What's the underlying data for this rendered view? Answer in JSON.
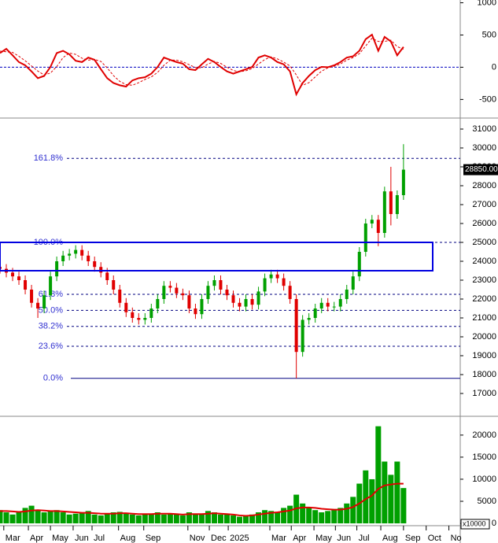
{
  "chart_data": [
    {
      "type": "line",
      "xlim": [
        0,
        73
      ],
      "ylim": [
        -764,
        1043
      ],
      "yticks": [
        -500,
        0,
        500,
        1000
      ],
      "zero_line": true,
      "series": [
        {
          "color": "#e00000",
          "values": [
            220,
            285,
            185,
            80,
            30,
            -65,
            -170,
            -135,
            5,
            220,
            255,
            200,
            100,
            80,
            150,
            115,
            -30,
            -170,
            -245,
            -280,
            -300,
            -205,
            -170,
            -155,
            -100,
            5,
            150,
            115,
            80,
            55,
            -30,
            -45,
            45,
            130,
            80,
            5,
            -65,
            -100,
            -65,
            -30,
            5,
            150,
            185,
            150,
            80,
            45,
            -65,
            -420,
            -245,
            -135,
            -45,
            5,
            0,
            30,
            80,
            150,
            170,
            255,
            435,
            505,
            255,
            470,
            400,
            185,
            315
          ]
        },
        {
          "color": "#e00000",
          "dashed": true,
          "values": [
            250,
            240,
            230,
            170,
            100,
            20,
            -60,
            -120,
            -90,
            10,
            150,
            220,
            200,
            140,
            110,
            120,
            90,
            -10,
            -130,
            -220,
            -270,
            -280,
            -240,
            -190,
            -150,
            -80,
            30,
            110,
            110,
            85,
            40,
            -5,
            -10,
            50,
            90,
            60,
            0,
            -50,
            -70,
            -55,
            -20,
            50,
            120,
            160,
            130,
            80,
            20,
            -120,
            -280,
            -240,
            -150,
            -60,
            -10,
            15,
            50,
            110,
            150,
            210,
            330,
            450,
            400,
            400,
            420,
            320,
            280
          ]
        }
      ]
    },
    {
      "type": "candlestick",
      "xlim": [
        0,
        73
      ],
      "ylim": [
        15875,
        31500
      ],
      "yticks": [
        17000,
        18000,
        19000,
        20000,
        21000,
        22000,
        23000,
        24000,
        25000,
        26000,
        27000,
        28000,
        29000,
        30000,
        31000
      ],
      "up_color": "#00a000",
      "down_color": "#e00000",
      "open": [
        23700,
        23600,
        23400,
        23200,
        23000,
        22500,
        21800,
        21500,
        22200,
        23200,
        24000,
        24300,
        24400,
        24600,
        24300,
        24000,
        23700,
        23400,
        23000,
        22500,
        21800,
        21300,
        21000,
        20900,
        21000,
        21500,
        22000,
        22700,
        22600,
        22300,
        22200,
        21500,
        21200,
        22000,
        22700,
        23000,
        22500,
        22200,
        21800,
        21600,
        22000,
        21700,
        22400,
        23100,
        23300,
        23100,
        22700,
        22000,
        19200,
        20900,
        21000,
        21500,
        21800,
        21600,
        21600,
        22000,
        22500,
        23200,
        24500,
        26000,
        26200,
        25500,
        27700,
        26500,
        27500
      ],
      "close": [
        23600,
        23400,
        23200,
        23000,
        22500,
        21800,
        21500,
        22200,
        23200,
        24000,
        24300,
        24400,
        24600,
        24300,
        24000,
        23700,
        23400,
        23000,
        22500,
        21800,
        21300,
        21000,
        20900,
        21000,
        21500,
        22000,
        22700,
        22600,
        22300,
        22200,
        21500,
        21200,
        22000,
        22700,
        23000,
        22500,
        22200,
        21800,
        21600,
        22000,
        21700,
        22400,
        23100,
        23300,
        23100,
        22700,
        22000,
        19200,
        20900,
        21000,
        21500,
        21800,
        21600,
        21600,
        22000,
        22500,
        23200,
        24500,
        26000,
        26200,
        25500,
        27700,
        26500,
        27500,
        28850
      ],
      "high": [
        23950,
        23850,
        23650,
        23450,
        23250,
        22750,
        22050,
        22450,
        23450,
        24250,
        24550,
        24650,
        24850,
        24850,
        24550,
        24250,
        23950,
        23650,
        23250,
        22750,
        22050,
        21550,
        21250,
        21250,
        21750,
        22250,
        22950,
        22950,
        22850,
        22550,
        22450,
        21750,
        22250,
        22950,
        23250,
        23250,
        22750,
        22450,
        22050,
        22250,
        22250,
        22650,
        23350,
        23550,
        23550,
        23350,
        22950,
        22250,
        21150,
        21250,
        21750,
        22050,
        22050,
        21850,
        22250,
        22750,
        23450,
        24750,
        26250,
        26450,
        26450,
        27950,
        29000,
        27750,
        30200
      ],
      "low": [
        23350,
        23150,
        22950,
        22750,
        22250,
        21550,
        21000,
        21250,
        21950,
        22950,
        23750,
        24050,
        24150,
        24050,
        23750,
        23450,
        23150,
        22750,
        22250,
        21550,
        21050,
        20750,
        20650,
        20650,
        20750,
        21250,
        21750,
        22350,
        22050,
        21950,
        21250,
        20950,
        20950,
        21750,
        22450,
        22250,
        21950,
        21550,
        21350,
        21350,
        21450,
        21450,
        22150,
        22850,
        22850,
        22450,
        21750,
        17800,
        18950,
        20650,
        20750,
        21250,
        21350,
        21350,
        21350,
        21750,
        22250,
        22950,
        24250,
        25750,
        24800,
        25250,
        25900,
        26250,
        27250
      ],
      "fib_levels": [
        {
          "value": 29450,
          "label": "161.8%"
        },
        {
          "value": 25000,
          "label": "100.0%"
        },
        {
          "value": 22250,
          "label": "61.8%"
        },
        {
          "value": 21400,
          "label": "50.0%"
        },
        {
          "value": 20550,
          "label": "38.2%"
        },
        {
          "value": 19500,
          "label": "23.6%"
        },
        {
          "value": 17800,
          "label": "0.0%"
        }
      ],
      "zone": [
        23500,
        25000
      ],
      "zone_color": "#0000e0",
      "last_price": {
        "value": 28850,
        "label": "28850.00"
      }
    },
    {
      "type": "bar",
      "xlim": [
        0,
        73
      ],
      "ylim": [
        -350,
        23900
      ],
      "yticks": [
        0,
        5000,
        10000,
        15000,
        20000
      ],
      "unit": "x10000",
      "series": [
        {
          "color": "#00a000",
          "values": [
            3000,
            2500,
            2000,
            2500,
            3500,
            4000,
            3000,
            2500,
            2800,
            3000,
            2500,
            2000,
            2200,
            2500,
            2800,
            2000,
            1800,
            2200,
            2500,
            2600,
            2200,
            2000,
            1800,
            2000,
            2200,
            2500,
            2000,
            2200,
            2000,
            1800,
            2500,
            2200,
            2000,
            2800,
            2500,
            2000,
            2200,
            1800,
            1500,
            1800,
            2000,
            2500,
            3000,
            2800,
            2500,
            3500,
            4000,
            6500,
            4500,
            3500,
            3000,
            2500,
            2800,
            3000,
            3500,
            4500,
            6000,
            9000,
            12000,
            10000,
            22000,
            14000,
            11000,
            14000,
            8000
          ]
        },
        {
          "color": "#e00000",
          "line": true,
          "values": [
            2800,
            2800,
            2700,
            2600,
            2700,
            2900,
            3000,
            2900,
            2800,
            2800,
            2700,
            2600,
            2500,
            2400,
            2400,
            2300,
            2200,
            2200,
            2200,
            2300,
            2300,
            2200,
            2100,
            2100,
            2100,
            2200,
            2200,
            2200,
            2100,
            2000,
            2100,
            2100,
            2100,
            2200,
            2300,
            2200,
            2100,
            2000,
            1800,
            1700,
            1800,
            2000,
            2200,
            2400,
            2500,
            2700,
            2900,
            3400,
            3600,
            3600,
            3500,
            3300,
            3200,
            3100,
            3100,
            3300,
            3700,
            4500,
            5500,
            6300,
            7800,
            8600,
            8800,
            9000,
            9000
          ]
        }
      ],
      "xticks": [
        {
          "value": 0.6,
          "label": "Mar"
        },
        {
          "value": 4.5,
          "label": "Apr"
        },
        {
          "value": 8,
          "label": "May"
        },
        {
          "value": 11.6,
          "label": "Jun"
        },
        {
          "value": 14.6,
          "label": "Jul"
        },
        {
          "value": 18.8,
          "label": "Aug"
        },
        {
          "value": 22.8,
          "label": "Sep"
        },
        {
          "value": 29.8,
          "label": "Nov"
        },
        {
          "value": 33.2,
          "label": "Dec"
        },
        {
          "value": 36.2,
          "label": "2025"
        },
        {
          "value": 42.8,
          "label": "Mar"
        },
        {
          "value": 46.2,
          "label": "Apr"
        },
        {
          "value": 49.8,
          "label": "May"
        },
        {
          "value": 53.2,
          "label": "Jun"
        },
        {
          "value": 56.6,
          "label": "Jul"
        },
        {
          "value": 60.4,
          "label": "Aug"
        },
        {
          "value": 64,
          "label": "Sep"
        },
        {
          "value": 67.6,
          "label": "Oct"
        },
        {
          "value": 71.2,
          "label": "No"
        }
      ]
    }
  ]
}
